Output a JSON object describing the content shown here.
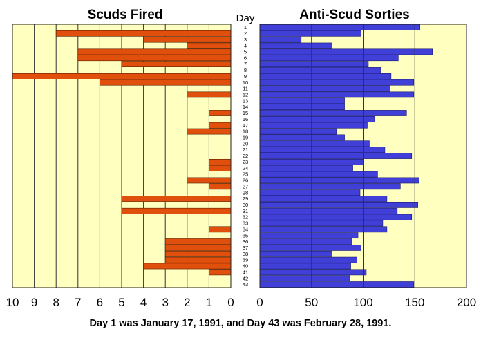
{
  "chart_data": [
    {
      "type": "bar",
      "orientation": "horizontal",
      "direction": "right-to-left",
      "title": "Scuds Fired",
      "categories": [
        "1",
        "2",
        "3",
        "4",
        "5",
        "6",
        "7",
        "8",
        "9",
        "10",
        "11",
        "12",
        "13",
        "14",
        "15",
        "16",
        "17",
        "18",
        "19",
        "20",
        "21",
        "22",
        "23",
        "24",
        "25",
        "26",
        "27",
        "28",
        "29",
        "30",
        "31",
        "32",
        "33",
        "34",
        "35",
        "36",
        "37",
        "38",
        "39",
        "40",
        "41",
        "42",
        "43"
      ],
      "category_header": "Day",
      "values": [
        0,
        8,
        4,
        2,
        7,
        7,
        5,
        0,
        10,
        6,
        0,
        2,
        0,
        0,
        1,
        0,
        1,
        2,
        0,
        0,
        0,
        0,
        1,
        1,
        0,
        2,
        1,
        0,
        5,
        0,
        5,
        0,
        0,
        1,
        0,
        3,
        3,
        3,
        3,
        4,
        1,
        0,
        0
      ],
      "xlim": [
        0,
        10
      ],
      "xticks": [
        10,
        9,
        8,
        7,
        6,
        5,
        4,
        3,
        2,
        1,
        0
      ],
      "bar_color": "#e0500c",
      "background_color": "#ffffc0",
      "grid": true
    },
    {
      "type": "bar",
      "orientation": "horizontal",
      "direction": "left-to-right",
      "title": "Anti-Scud Sorties",
      "categories": [
        "1",
        "2",
        "3",
        "4",
        "5",
        "6",
        "7",
        "8",
        "9",
        "10",
        "11",
        "12",
        "13",
        "14",
        "15",
        "16",
        "17",
        "18",
        "19",
        "20",
        "21",
        "22",
        "23",
        "24",
        "25",
        "26",
        "27",
        "28",
        "29",
        "30",
        "31",
        "32",
        "33",
        "34",
        "35",
        "36",
        "37",
        "38",
        "39",
        "40",
        "41",
        "42",
        "43"
      ],
      "values": [
        155,
        98,
        40,
        70,
        167,
        134,
        105,
        117,
        127,
        149,
        126,
        149,
        82,
        82,
        142,
        111,
        104,
        74,
        82,
        106,
        121,
        147,
        100,
        90,
        114,
        154,
        136,
        97,
        123,
        153,
        133,
        147,
        119,
        123,
        95,
        89,
        98,
        70,
        94,
        88,
        103,
        87,
        149
      ],
      "xlim": [
        0,
        200
      ],
      "xticks": [
        0,
        50,
        100,
        150,
        200
      ],
      "bar_color": "#4040d8",
      "background_color": "#ffffc0",
      "grid": true
    }
  ],
  "footnote": "Day 1 was January 17, 1991, and Day 43 was February 28, 1991."
}
